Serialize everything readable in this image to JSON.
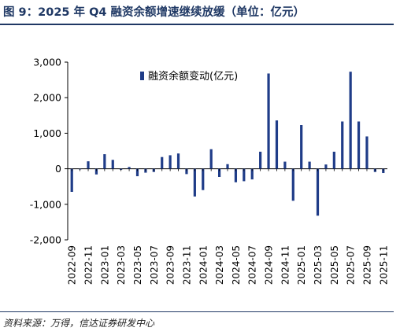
{
  "header": {
    "title": "图 9：2025 年 Q4 融资余额增速继续放缓（单位：亿元）"
  },
  "footer": {
    "source": "资料来源：万得，信达证券研发中心"
  },
  "colors": {
    "bar": "#1f3c88",
    "axis": "#000000",
    "title": "#1f3864"
  },
  "chart_data": {
    "type": "bar",
    "ylim": [
      -2000,
      3000
    ],
    "yticks": [
      {
        "value": 3000,
        "label": "3,000"
      },
      {
        "value": 2000,
        "label": "2,000"
      },
      {
        "value": 1000,
        "label": "1,000"
      },
      {
        "value": 0,
        "label": "0"
      },
      {
        "value": -1000,
        "label": "-1,000"
      },
      {
        "value": -2000,
        "label": "-2,000"
      }
    ],
    "grid": false,
    "legend_position": "top-center",
    "series": [
      {
        "name": "融资余额变动(亿元)",
        "categories": [
          "2022-09",
          "2022-10",
          "2022-11",
          "2022-12",
          "2023-01",
          "2023-02",
          "2023-03",
          "2023-04",
          "2023-05",
          "2023-06",
          "2023-07",
          "2023-08",
          "2023-09",
          "2023-10",
          "2023-11",
          "2023-12",
          "2024-01",
          "2024-02",
          "2024-03",
          "2024-04",
          "2024-05",
          "2024-06",
          "2024-07",
          "2024-08",
          "2024-09",
          "2024-10",
          "2024-11",
          "2024-12",
          "2025-01",
          "2025-02",
          "2025-03",
          "2025-04",
          "2025-05",
          "2025-06",
          "2025-07",
          "2025-08",
          "2025-09",
          "2025-10",
          "2025-11"
        ],
        "values": [
          -650,
          -10,
          210,
          -160,
          410,
          250,
          -30,
          50,
          -210,
          -110,
          -90,
          330,
          380,
          430,
          -150,
          -780,
          -600,
          550,
          -230,
          130,
          -380,
          -350,
          -300,
          480,
          2680,
          1360,
          200,
          -900,
          1230,
          200,
          -1320,
          120,
          480,
          1330,
          2730,
          1330,
          910,
          -90,
          -120
        ]
      }
    ],
    "x_tick_labels": [
      "2022-09",
      "2022-11",
      "2023-01",
      "2023-03",
      "2023-05",
      "2023-07",
      "2023-09",
      "2023-11",
      "2024-01",
      "2024-03",
      "2024-05",
      "2024-07",
      "2024-09",
      "2024-11",
      "2025-01",
      "2025-03",
      "2025-05",
      "2025-07",
      "2025-09",
      "2025-11"
    ],
    "x_tick_every": 2
  }
}
